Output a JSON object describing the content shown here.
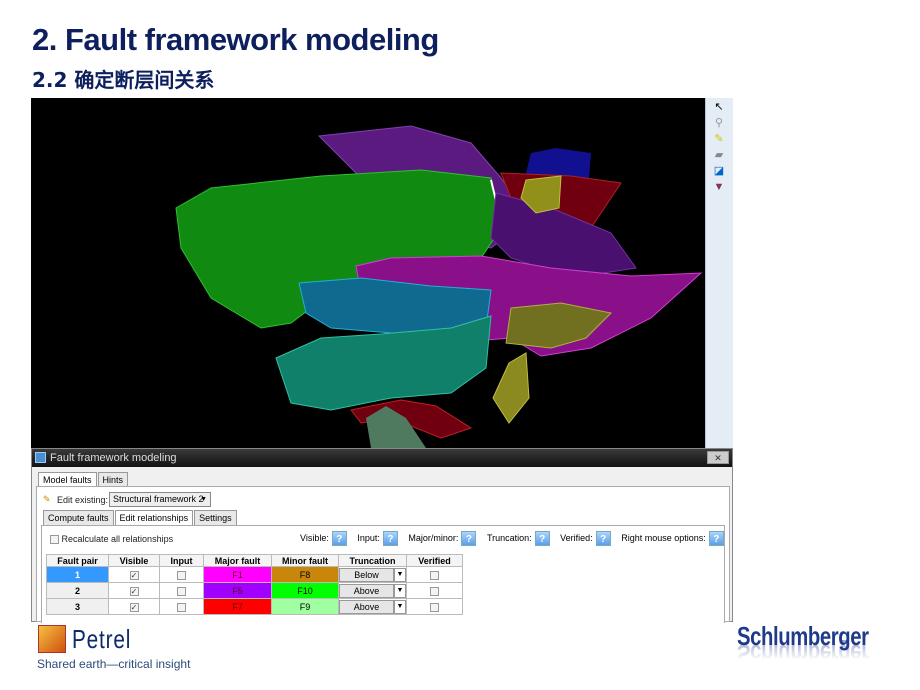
{
  "slide": {
    "title": "2. Fault framework modeling",
    "subtitle": "2.2 确定断层间关系"
  },
  "toolbar": {
    "icons": [
      "select-arrow-icon",
      "zoom-icon",
      "measure-icon",
      "fault-icon",
      "view-icon",
      "framework-icon"
    ]
  },
  "dialog": {
    "title": "Fault framework modeling",
    "top_tabs": [
      "Model faults",
      "Hints"
    ],
    "edit_existing_label": "Edit existing:",
    "edit_existing_value": "Structural framework 2",
    "sub_tabs": [
      "Compute faults",
      "Edit relationships",
      "Settings"
    ],
    "recalculate_label": "Recalculate all relationships",
    "hints": [
      "Visible:",
      "Input:",
      "Major/minor:",
      "Truncation:",
      "Verified:",
      "Right mouse options:"
    ],
    "help_glyph": "?",
    "columns": [
      "Fault pair",
      "Visible",
      "Input",
      "Major fault",
      "Minor fault",
      "Truncation",
      "Verified"
    ],
    "rows": [
      {
        "pair": "1",
        "visible": true,
        "input": false,
        "major": "F1",
        "major_color": "#ff00ff",
        "minor": "F8",
        "minor_color": "#c8860a",
        "truncation": "Below",
        "verified": false,
        "selected": true
      },
      {
        "pair": "2",
        "visible": true,
        "input": false,
        "major": "F5",
        "major_color": "#a000ff",
        "minor": "F10",
        "minor_color": "#00ff00",
        "truncation": "Above",
        "verified": false,
        "selected": false
      },
      {
        "pair": "3",
        "visible": true,
        "input": false,
        "major": "F7",
        "major_color": "#ff0000",
        "minor": "F9",
        "minor_color": "#a0ffa0",
        "truncation": "Above",
        "verified": false,
        "selected": false
      }
    ]
  },
  "footer": {
    "product": "Petrel",
    "slogan": "Shared earth—critical insight",
    "company": "Schlumberger"
  },
  "colors": {
    "title": "#0d1f5c",
    "selected_row": "#3399ff"
  }
}
